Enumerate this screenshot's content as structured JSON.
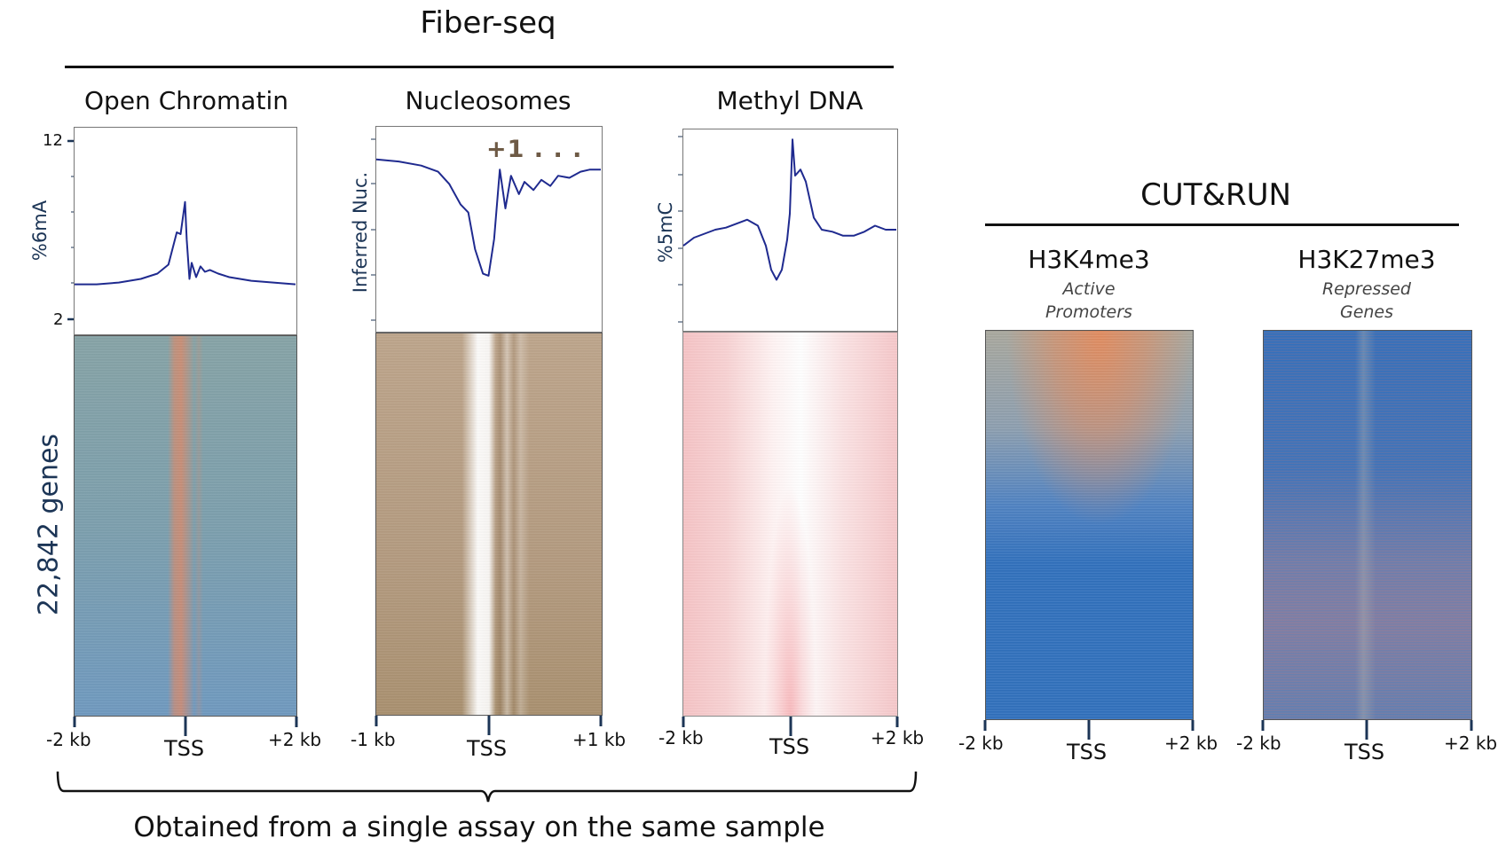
{
  "header": {
    "fiberseq_title": "Fiber-seq",
    "cutrun_title": "CUT&RUN",
    "genes_label": "22,842 genes",
    "footer_caption": "Obtained from a single assay on the same sample",
    "annotation_plus1": "+1 . . ."
  },
  "colors": {
    "line": "#1f2a8f",
    "axis_text": "#1c3556",
    "oc_heat_bg": "#7b9fb2",
    "oc_heat_signal": "#d9896a",
    "nuc_heat_bg": "#b49a7f",
    "nuc_heat_free": "#ffffff",
    "meth_heat_bg": "#f6c9cb",
    "meth_heat_low": "#ffffff",
    "cutrun_blue": "#3070bd",
    "cutrun_orange": "#e48a5c",
    "annotation": "#6e5a45"
  },
  "chart_data": [
    {
      "id": "open-chromatin",
      "type": "line",
      "title": "Open Chromatin",
      "ylabel": "%6mA",
      "yticks": [
        "12",
        "2"
      ],
      "ylim": [
        2,
        12
      ],
      "xlim": [
        -2,
        2
      ],
      "x_unit": "kb",
      "xtick_labels": [
        "-2 kb",
        "TSS",
        "+2 kb"
      ],
      "x": [
        -2.0,
        -1.6,
        -1.2,
        -0.8,
        -0.5,
        -0.3,
        -0.15,
        -0.08,
        0.0,
        0.03,
        0.08,
        0.12,
        0.2,
        0.28,
        0.36,
        0.45,
        0.6,
        0.8,
        1.2,
        1.6,
        2.0
      ],
      "y": [
        4.0,
        4.0,
        4.1,
        4.3,
        4.6,
        5.1,
        6.9,
        6.8,
        8.6,
        6.5,
        4.3,
        5.2,
        4.4,
        5.0,
        4.7,
        4.8,
        4.6,
        4.4,
        4.2,
        4.1,
        4.0
      ]
    },
    {
      "id": "nucleosomes",
      "type": "line",
      "title": "Nucleosomes",
      "ylabel": "Inferred Nuc.",
      "xlim": [
        -1,
        1
      ],
      "x_unit": "kb",
      "xtick_labels": [
        "-1 kb",
        "TSS",
        "+1 kb"
      ],
      "ylim": [
        0,
        1
      ],
      "annotation": "+1 . . .",
      "x": [
        -1.0,
        -0.8,
        -0.6,
        -0.45,
        -0.35,
        -0.25,
        -0.18,
        -0.12,
        -0.05,
        0.0,
        0.05,
        0.1,
        0.15,
        0.2,
        0.27,
        0.32,
        0.4,
        0.47,
        0.55,
        0.62,
        0.72,
        0.82,
        0.9,
        1.0
      ],
      "y": [
        0.84,
        0.83,
        0.81,
        0.78,
        0.72,
        0.62,
        0.58,
        0.4,
        0.28,
        0.27,
        0.45,
        0.79,
        0.6,
        0.76,
        0.67,
        0.73,
        0.69,
        0.74,
        0.71,
        0.76,
        0.75,
        0.78,
        0.79,
        0.79
      ]
    },
    {
      "id": "methyl-dna",
      "type": "line",
      "title": "Methyl DNA",
      "ylabel": "%5mC",
      "xlim": [
        -2,
        2
      ],
      "x_unit": "kb",
      "xtick_labels": [
        "-2 kb",
        "TSS",
        "+2 kb"
      ],
      "ylim": [
        0,
        1
      ],
      "x": [
        -2.0,
        -1.8,
        -1.6,
        -1.4,
        -1.2,
        -1.0,
        -0.8,
        -0.6,
        -0.45,
        -0.35,
        -0.25,
        -0.15,
        -0.05,
        0.0,
        0.05,
        0.1,
        0.2,
        0.3,
        0.45,
        0.6,
        0.8,
        1.0,
        1.2,
        1.4,
        1.6,
        1.8,
        2.0
      ],
      "y": [
        0.42,
        0.46,
        0.48,
        0.5,
        0.51,
        0.53,
        0.55,
        0.52,
        0.42,
        0.3,
        0.25,
        0.3,
        0.45,
        0.58,
        0.95,
        0.77,
        0.8,
        0.74,
        0.56,
        0.5,
        0.49,
        0.47,
        0.47,
        0.49,
        0.52,
        0.5,
        0.5
      ]
    },
    {
      "id": "h3k4me3",
      "type": "heatmap",
      "title": "H3K4me3",
      "subtitle": [
        "Active",
        "Promoters"
      ],
      "xlim": [
        -2,
        2
      ],
      "xtick_labels": [
        "-2 kb",
        "TSS",
        "+2 kb"
      ]
    },
    {
      "id": "h3k27me3",
      "type": "heatmap",
      "title": "H3K27me3",
      "subtitle": [
        "Repressed",
        "Genes"
      ],
      "xlim": [
        -2,
        2
      ],
      "xtick_labels": [
        "-2 kb",
        "TSS",
        "+2 kb"
      ]
    }
  ]
}
